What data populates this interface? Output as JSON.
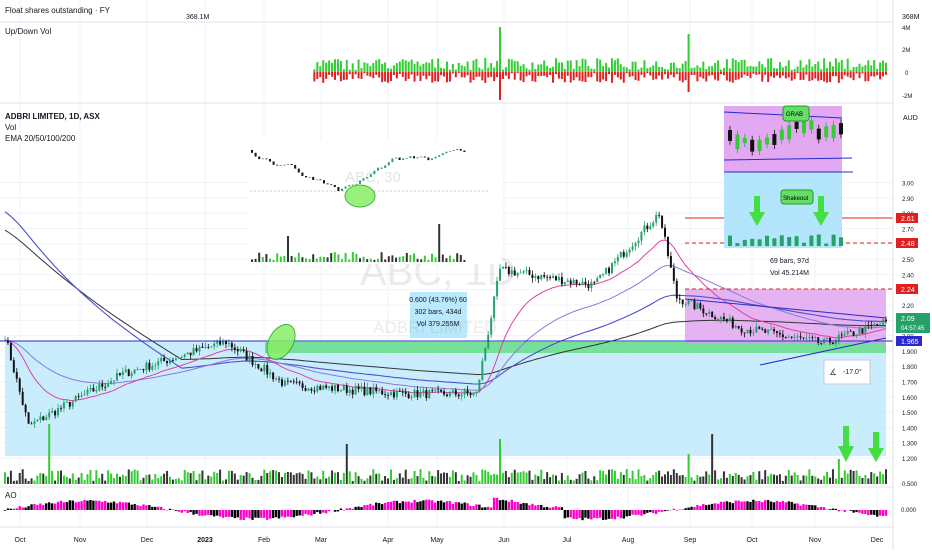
{
  "colors": {
    "up": "#26a269",
    "up_bright": "#33cc33",
    "down": "#e02020",
    "black": "#000000",
    "magenta": "#ff00cc",
    "purple_shade": "#dd99ee",
    "cyan_shade": "#b3e5fc",
    "green_band": "#66dd88",
    "ema20": "#e040a0",
    "ema50": "#4a4acc",
    "ema100": "#7070dd",
    "ema200": "#333333",
    "grid": "#f0f3fa",
    "axis_text": "#131722"
  },
  "panes": {
    "float": {
      "title": "Float shares outstanding · FY",
      "value_label": "368M",
      "point_label": "368.1M"
    },
    "updown": {
      "title": "Up/Down Vol",
      "ticks": [
        "4M",
        "2M",
        "0",
        "-2M"
      ]
    },
    "main": {
      "title": "ADBRI LIMITED, 1D, ASX",
      "vol_label": "Vol",
      "ema_label": "EMA 20/50/100/200",
      "currency": "AUD",
      "watermark": "ABC, 1D",
      "watermark_sub": "ADBRI LIMITED"
    },
    "ao": {
      "title": "AO",
      "tick": "0.000"
    }
  },
  "price_axis": {
    "ticks": [
      "3.00",
      "2.90",
      "2.80",
      "2.70",
      "2.60",
      "2.50",
      "2.40",
      "2.30",
      "2.20",
      "2.10",
      "2.00",
      "1.900",
      "1.800",
      "1.700",
      "1.600",
      "1.500",
      "1.400",
      "1.300",
      "1.200",
      "0.500"
    ],
    "labels": [
      {
        "text": "2.61",
        "color": "#e02020"
      },
      {
        "text": "2.48",
        "color": "#e02020"
      },
      {
        "text": "2.24",
        "color": "#e02020"
      },
      {
        "text": "2.09",
        "sub": "04:57:45",
        "color": "#26a269"
      },
      {
        "text": "1.965",
        "color": "#2a2acc"
      }
    ]
  },
  "time_axis": [
    "Oct",
    "Nov",
    "Dec",
    "2023",
    "Feb",
    "Mar",
    "Apr",
    "May",
    "Jun",
    "Jul",
    "Aug",
    "Sep",
    "Oct",
    "Nov",
    "Dec"
  ],
  "annotations": {
    "measure_price": "0.600 (43.76%) 60",
    "measure_bars": "302 bars, 434d",
    "measure_vol": "Vol 379.255M",
    "range_bars": "69 bars, 97d",
    "range_vol": "Vol 45.214M",
    "angle": "-17.0°",
    "grab": "GRAB",
    "shakeout": "Shakeout",
    "inset_watermark": "ABC, 30"
  },
  "chart_data": {
    "type": "candlestick",
    "title": "ADBRI LIMITED, 1D, ASX",
    "ylabel": "AUD",
    "ylim": [
      1.15,
      3.1
    ],
    "x_range": [
      "Oct 2022",
      "Dec 2023"
    ],
    "series": [
      {
        "name": "EMA 20",
        "color": "#e040a0"
      },
      {
        "name": "EMA 50",
        "color": "#4a4acc"
      },
      {
        "name": "EMA 100",
        "color": "#7070dd"
      },
      {
        "name": "EMA 200",
        "color": "#333333"
      }
    ],
    "key_points": [
      {
        "x": "Oct 2022",
        "y": 2.0
      },
      {
        "x": "Oct 2022",
        "y": 1.41
      },
      {
        "x": "Dec 2022",
        "y": 1.75
      },
      {
        "x": "Feb 2023",
        "y": 1.96
      },
      {
        "x": "Mar 2023",
        "y": 1.68
      },
      {
        "x": "May 2023",
        "y": 1.62
      },
      {
        "x": "late May 2023",
        "y": 1.62
      },
      {
        "x": "Jun 2023",
        "y": 2.43
      },
      {
        "x": "Jul 2023",
        "y": 2.33
      },
      {
        "x": "Aug 2023",
        "y": 2.8
      },
      {
        "x": "Sep 2023",
        "y": 2.25
      },
      {
        "x": "Oct 2023",
        "y": 2.05
      },
      {
        "x": "Nov 2023",
        "y": 1.95
      },
      {
        "x": "Dec 2023",
        "y": 2.09
      }
    ],
    "levels": [
      2.61,
      2.48,
      2.24,
      2.09,
      1.965
    ]
  }
}
